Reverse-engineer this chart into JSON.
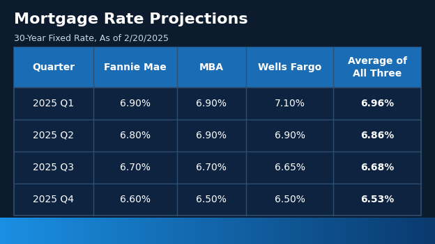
{
  "title": "Mortgage Rate Projections",
  "subtitle": "30-Year Fixed Rate, As of 2/20/2025",
  "columns": [
    "Quarter",
    "Fannie Mae",
    "MBA",
    "Wells Fargo",
    "Average of\nAll Three"
  ],
  "rows": [
    [
      "2025 Q1",
      "6.90%",
      "6.90%",
      "7.10%",
      "6.96%"
    ],
    [
      "2025 Q2",
      "6.80%",
      "6.90%",
      "6.90%",
      "6.86%"
    ],
    [
      "2025 Q3",
      "6.70%",
      "6.70%",
      "6.65%",
      "6.68%"
    ],
    [
      "2025 Q4",
      "6.60%",
      "6.50%",
      "6.50%",
      "6.53%"
    ]
  ],
  "bg_color": "#0c1c2e",
  "table_bg_dark": "#0d2340",
  "header_bg": "#1a6db5",
  "cell_border_color": "#2e4f72",
  "text_white": "#ffffff",
  "text_light": "#c8d8e8",
  "bottom_bar_color_left": "#1a8fe3",
  "bottom_bar_color_right": "#0a3a6e",
  "title_fontsize": 16,
  "subtitle_fontsize": 9,
  "header_fontsize": 10,
  "cell_fontsize": 10
}
